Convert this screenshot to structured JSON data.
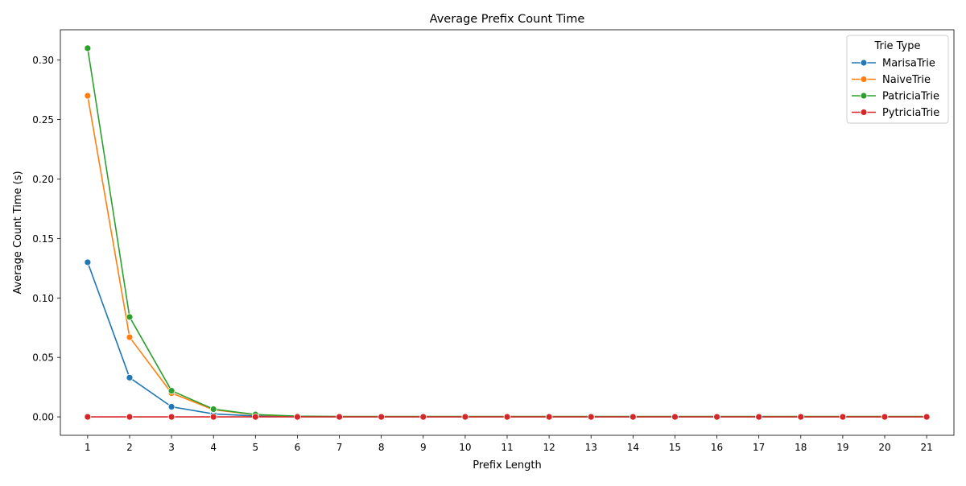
{
  "chart_data": {
    "type": "line",
    "title": "Average Prefix Count Time",
    "xlabel": "Prefix Length",
    "ylabel": "Average Count Time (s)",
    "x": [
      1,
      2,
      3,
      4,
      5,
      6,
      7,
      8,
      9,
      10,
      11,
      12,
      13,
      14,
      15,
      16,
      17,
      18,
      19,
      20,
      21
    ],
    "xlim": [
      0.35,
      21.65
    ],
    "ylim": [
      -0.0155,
      0.3255
    ],
    "yticks": [
      0.0,
      0.05,
      0.1,
      0.15,
      0.2,
      0.25,
      0.3
    ],
    "ytick_labels": [
      "0.00",
      "0.05",
      "0.10",
      "0.15",
      "0.20",
      "0.25",
      "0.30"
    ],
    "grid": false,
    "legend": {
      "title": "Trie Type",
      "placement": "top-right"
    },
    "series": [
      {
        "name": "MarisaTrie",
        "color": "#1f77b4",
        "values": [
          0.13,
          0.033,
          0.0085,
          0.0025,
          0.0008,
          0.0002,
          0.0001,
          0.0001,
          0.0001,
          0.0001,
          0.0001,
          0.0001,
          0.0001,
          0.0001,
          0.0001,
          0.0001,
          0.0001,
          0.0001,
          0.0001,
          0.0001,
          0.0001
        ]
      },
      {
        "name": "NaiveTrie",
        "color": "#ff7f0e",
        "values": [
          0.27,
          0.067,
          0.02,
          0.006,
          0.0018,
          0.0004,
          0.0002,
          0.0002,
          0.0002,
          0.0002,
          0.0002,
          0.0002,
          0.0002,
          0.0002,
          0.0002,
          0.0002,
          0.0002,
          0.0002,
          0.0002,
          0.0002,
          0.0002
        ]
      },
      {
        "name": "PatriciaTrie",
        "color": "#2ca02c",
        "values": [
          0.31,
          0.084,
          0.022,
          0.0065,
          0.002,
          0.0006,
          0.0004,
          0.0004,
          0.0004,
          0.0004,
          0.0004,
          0.0004,
          0.0004,
          0.0004,
          0.0004,
          0.0004,
          0.0004,
          0.0004,
          0.0004,
          0.0004,
          0.0004
        ]
      },
      {
        "name": "PytriciaTrie",
        "color": "#d62728",
        "values": [
          0.0,
          0.0,
          0.0,
          0.0,
          0.0,
          0.0,
          0.0,
          0.0,
          0.0,
          0.0,
          0.0,
          0.0,
          0.0,
          0.0,
          0.0,
          0.0,
          0.0,
          0.0,
          0.0,
          0.0,
          0.0
        ]
      }
    ]
  }
}
